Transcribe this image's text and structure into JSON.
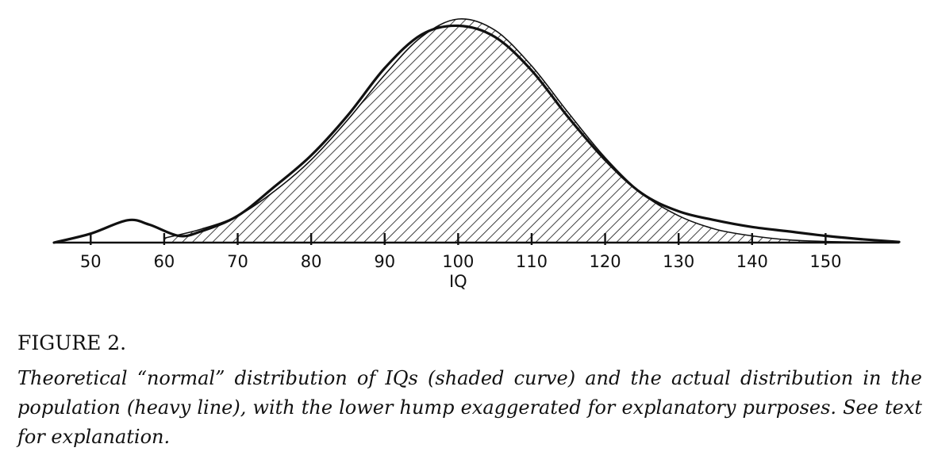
{
  "figure": {
    "label": "FIGURE 2.",
    "caption": "Theoretical “normal” distribution of IQs (shaded curve) and the actual distribution in the population (heavy line), with the lower hump exaggerated for explanatory purposes. See text for explanation."
  },
  "chart_data": {
    "type": "area",
    "title": "",
    "xlabel": "IQ",
    "ylabel": "",
    "xlim": [
      45,
      160
    ],
    "ylim": [
      0,
      1
    ],
    "x_ticks": [
      50,
      60,
      70,
      80,
      90,
      100,
      110,
      120,
      130,
      140,
      150
    ],
    "grid": false,
    "legend": "none",
    "colors": {
      "ink": "#111111",
      "background": "#ffffff"
    },
    "series": [
      {
        "name": "normal",
        "style": "shaded",
        "x": [
          60,
          65,
          70,
          75,
          80,
          85,
          90,
          95,
          100,
          105,
          110,
          115,
          120,
          125,
          130,
          135,
          140,
          145,
          150,
          155,
          160
        ],
        "y": [
          0.02,
          0.06,
          0.12,
          0.23,
          0.37,
          0.55,
          0.75,
          0.92,
          1.0,
          0.95,
          0.79,
          0.58,
          0.38,
          0.22,
          0.12,
          0.06,
          0.03,
          0.012,
          0.005,
          0.002,
          0.0
        ]
      },
      {
        "name": "actual",
        "style": "heavy",
        "x": [
          45,
          50,
          55,
          58,
          62,
          65,
          70,
          75,
          80,
          85,
          90,
          95,
          100,
          105,
          110,
          115,
          120,
          125,
          130,
          135,
          140,
          145,
          150,
          155,
          160
        ],
        "y": [
          0.0,
          0.04,
          0.1,
          0.08,
          0.03,
          0.05,
          0.12,
          0.25,
          0.39,
          0.57,
          0.78,
          0.93,
          0.97,
          0.92,
          0.77,
          0.56,
          0.37,
          0.22,
          0.14,
          0.1,
          0.07,
          0.05,
          0.03,
          0.015,
          0.003
        ]
      }
    ]
  }
}
